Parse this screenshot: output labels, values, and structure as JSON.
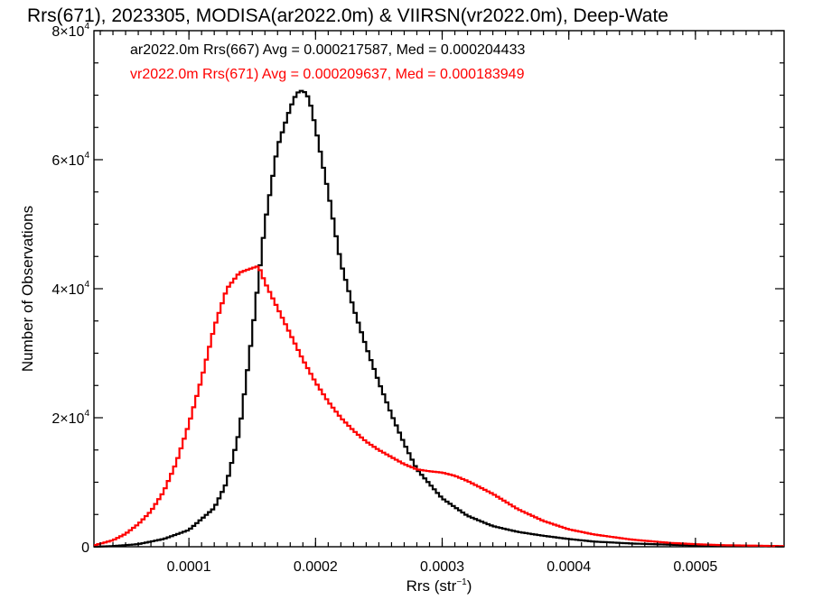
{
  "chart_data": {
    "type": "line",
    "title": "Rrs(671), 2023305, MODISA(ar2022.0m) & VIIRSN(vr2022.0m), Deep-Wate",
    "xlabel": "Rrs (str",
    "xlabel_sup": "−1",
    "xlabel_suffix": ")",
    "ylabel": "Number of Observations",
    "xlim": [
      2.5e-05,
      0.00057
    ],
    "ylim": [
      0,
      80000
    ],
    "grid": false,
    "legend_position": "top-left",
    "x_ticks": [
      {
        "value": 0.0001,
        "label": "0.0001"
      },
      {
        "value": 0.0002,
        "label": "0.0002"
      },
      {
        "value": 0.0003,
        "label": "0.0003"
      },
      {
        "value": 0.0004,
        "label": "0.0004"
      },
      {
        "value": 0.0005,
        "label": "0.0005"
      }
    ],
    "y_ticks": [
      {
        "value": 0,
        "label": "0",
        "sup": ""
      },
      {
        "value": 20000,
        "label": "2×10",
        "sup": "4"
      },
      {
        "value": 40000,
        "label": "4×10",
        "sup": "4"
      },
      {
        "value": 60000,
        "label": "6×10",
        "sup": "4"
      },
      {
        "value": 80000,
        "label": "8×10",
        "sup": "4"
      }
    ],
    "series": [
      {
        "name": "ar2022.0m Rrs(667) Avg = 0.000217587, Med = 0.000204433",
        "color": "#000000",
        "x": [
          2.5e-05,
          4e-05,
          6e-05,
          8e-05,
          0.0001,
          0.00012,
          0.00013,
          0.00014,
          0.00015,
          0.00016,
          0.00017,
          0.00018,
          0.000185,
          0.00019,
          0.000195,
          0.0002,
          0.00021,
          0.00022,
          0.00023,
          0.00024,
          0.00025,
          0.00026,
          0.00027,
          0.00028,
          0.0003,
          0.00032,
          0.00034,
          0.00036,
          0.00038,
          0.0004,
          0.00042,
          0.00045,
          0.0005,
          0.00057
        ],
        "values": [
          0,
          100,
          400,
          1200,
          2600,
          6000,
          10000,
          18000,
          33000,
          50000,
          62000,
          68000,
          70300,
          70800,
          69500,
          65000,
          55000,
          44000,
          37000,
          31000,
          25500,
          20500,
          16000,
          12000,
          7500,
          4800,
          3200,
          2300,
          1700,
          1200,
          800,
          500,
          200,
          50
        ]
      },
      {
        "name": "vr2022.0m Rrs(671) Avg = 0.000209637, Med = 0.000183949",
        "color": "#ff0000",
        "x": [
          2.5e-05,
          4e-05,
          5e-05,
          6e-05,
          7e-05,
          8e-05,
          9e-05,
          0.0001,
          0.00011,
          0.00012,
          0.00013,
          0.00014,
          0.00015,
          0.000155,
          0.00016,
          0.00017,
          0.00018,
          0.00019,
          0.0002,
          0.00021,
          0.00022,
          0.00023,
          0.00024,
          0.00025,
          0.00026,
          0.00027,
          0.00028,
          0.00029,
          0.0003,
          0.00031,
          0.00032,
          0.00033,
          0.00034,
          0.00035,
          0.00036,
          0.00038,
          0.0004,
          0.00042,
          0.00045,
          0.00048,
          0.0005,
          0.00052,
          0.00057
        ],
        "values": [
          200,
          1000,
          2000,
          3500,
          5500,
          8500,
          13000,
          19000,
          26000,
          34000,
          40000,
          42500,
          43200,
          43500,
          41000,
          37000,
          33000,
          29000,
          25500,
          22500,
          20000,
          18000,
          16300,
          15000,
          13900,
          12800,
          12000,
          11700,
          11500,
          11000,
          10200,
          9200,
          8200,
          7000,
          5800,
          4000,
          2700,
          1900,
          1100,
          600,
          400,
          250,
          100
        ]
      }
    ]
  }
}
